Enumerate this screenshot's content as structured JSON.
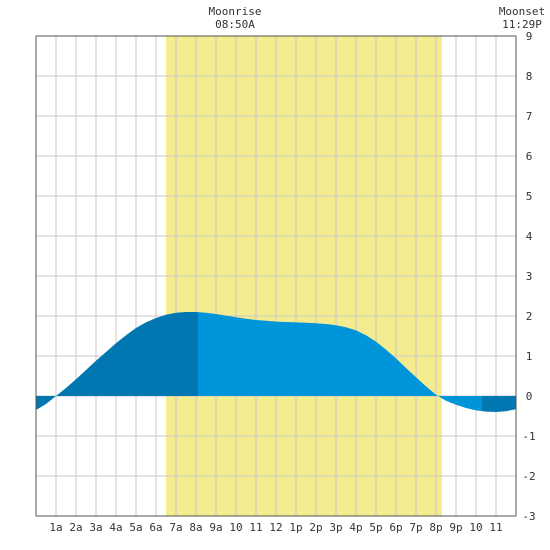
{
  "chart_data": {
    "type": "area",
    "title": "",
    "xlabel": "",
    "ylabel": "",
    "xlim": [
      0,
      24
    ],
    "ylim": [
      -3,
      9
    ],
    "y_ticks": [
      9,
      8,
      7,
      6,
      5,
      4,
      3,
      2,
      1,
      0,
      -1,
      -2,
      -3
    ],
    "x_tick_labels": [
      "1a",
      "2a",
      "3a",
      "4a",
      "5a",
      "6a",
      "7a",
      "8a",
      "9a",
      "10",
      "11",
      "12",
      "1p",
      "2p",
      "3p",
      "4p",
      "5p",
      "6p",
      "7p",
      "8p",
      "9p",
      "10",
      "11"
    ],
    "grid": true,
    "moon": {
      "rise_label": "Moonrise",
      "rise_time": "08:50A",
      "set_label": "Moonset",
      "set_time": "11:29P",
      "daylight_start_hour": 6.5,
      "daylight_end_hour": 20.3
    },
    "tide_curve": {
      "hours": [
        0,
        0.5,
        1,
        1.5,
        2,
        2.5,
        3,
        3.5,
        4,
        4.5,
        5,
        5.5,
        6,
        6.5,
        7,
        7.5,
        8,
        8.5,
        9,
        9.5,
        10,
        10.5,
        11,
        11.5,
        12,
        12.5,
        13,
        13.5,
        14,
        14.5,
        15,
        15.5,
        16,
        16.5,
        17,
        17.5,
        18,
        18.5,
        19,
        19.5,
        20,
        20.5,
        21,
        21.5,
        22,
        22.5,
        23,
        23.5,
        24
      ],
      "heights": [
        -0.35,
        -0.2,
        0.0,
        0.2,
        0.42,
        0.65,
        0.88,
        1.1,
        1.32,
        1.52,
        1.7,
        1.84,
        1.95,
        2.03,
        2.08,
        2.1,
        2.1,
        2.08,
        2.05,
        2.01,
        1.97,
        1.93,
        1.9,
        1.88,
        1.86,
        1.85,
        1.84,
        1.83,
        1.82,
        1.8,
        1.77,
        1.72,
        1.64,
        1.52,
        1.36,
        1.16,
        0.94,
        0.7,
        0.47,
        0.24,
        0.03,
        -0.12,
        -0.22,
        -0.3,
        -0.36,
        -0.39,
        -0.4,
        -0.38,
        -0.33
      ],
      "dark_until_hour": 8.1
    },
    "colors": {
      "daylight": "#f4ec8e",
      "tide_dark": "#0077b0",
      "tide_light": "#0095d8",
      "grid": "#c8c8c8",
      "frame": "#555555"
    }
  }
}
